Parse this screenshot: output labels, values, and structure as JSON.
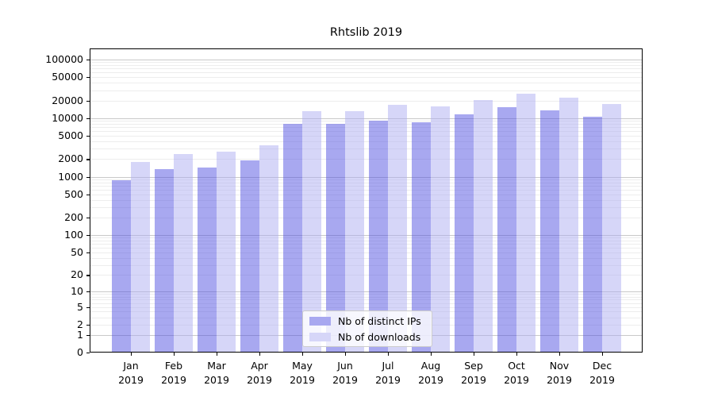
{
  "title": "Rhtslib 2019",
  "chart_data": {
    "type": "bar",
    "title": "Rhtslib 2019",
    "categories": [
      "Jan 2019",
      "Feb 2019",
      "Mar 2019",
      "Apr 2019",
      "May 2019",
      "Jun 2019",
      "Jul 2019",
      "Aug 2019",
      "Sep 2019",
      "Oct 2019",
      "Nov 2019",
      "Dec 2019"
    ],
    "series": [
      {
        "name": "Nb of distinct IPs",
        "values": [
          860,
          1350,
          1450,
          1920,
          7960,
          8030,
          9140,
          8590,
          11720,
          15520,
          13580,
          10670
        ],
        "fill": "rgba(74,74,224,0.48)",
        "legend_color": "#a8a8f0"
      },
      {
        "name": "Nb of downloads",
        "values": [
          1800,
          2470,
          2680,
          3480,
          13150,
          13350,
          16900,
          15880,
          20560,
          26130,
          22590,
          17420
        ],
        "fill": "rgba(170,170,240,0.48)",
        "legend_color": "#d6d6f8"
      }
    ],
    "xlabel": "",
    "ylabel": "",
    "yscale": "log1p",
    "yticks": [
      100000,
      50000,
      20000,
      10000,
      5000,
      2000,
      1000,
      500,
      200,
      100,
      50,
      20,
      10,
      5,
      2,
      1,
      0
    ],
    "ylim": [
      0,
      155000
    ],
    "grid": "on",
    "legend_position": "lower-center-inside"
  },
  "legend": {
    "items": [
      {
        "label": "Nb of distinct IPs",
        "color": "#a8a8f0"
      },
      {
        "label": "Nb of downloads",
        "color": "#d6d6f8"
      }
    ]
  },
  "colors": {
    "axis": "#000000",
    "grid_major": "#c9c9c9",
    "grid_minor": "#ededed",
    "background": "#ffffff"
  }
}
